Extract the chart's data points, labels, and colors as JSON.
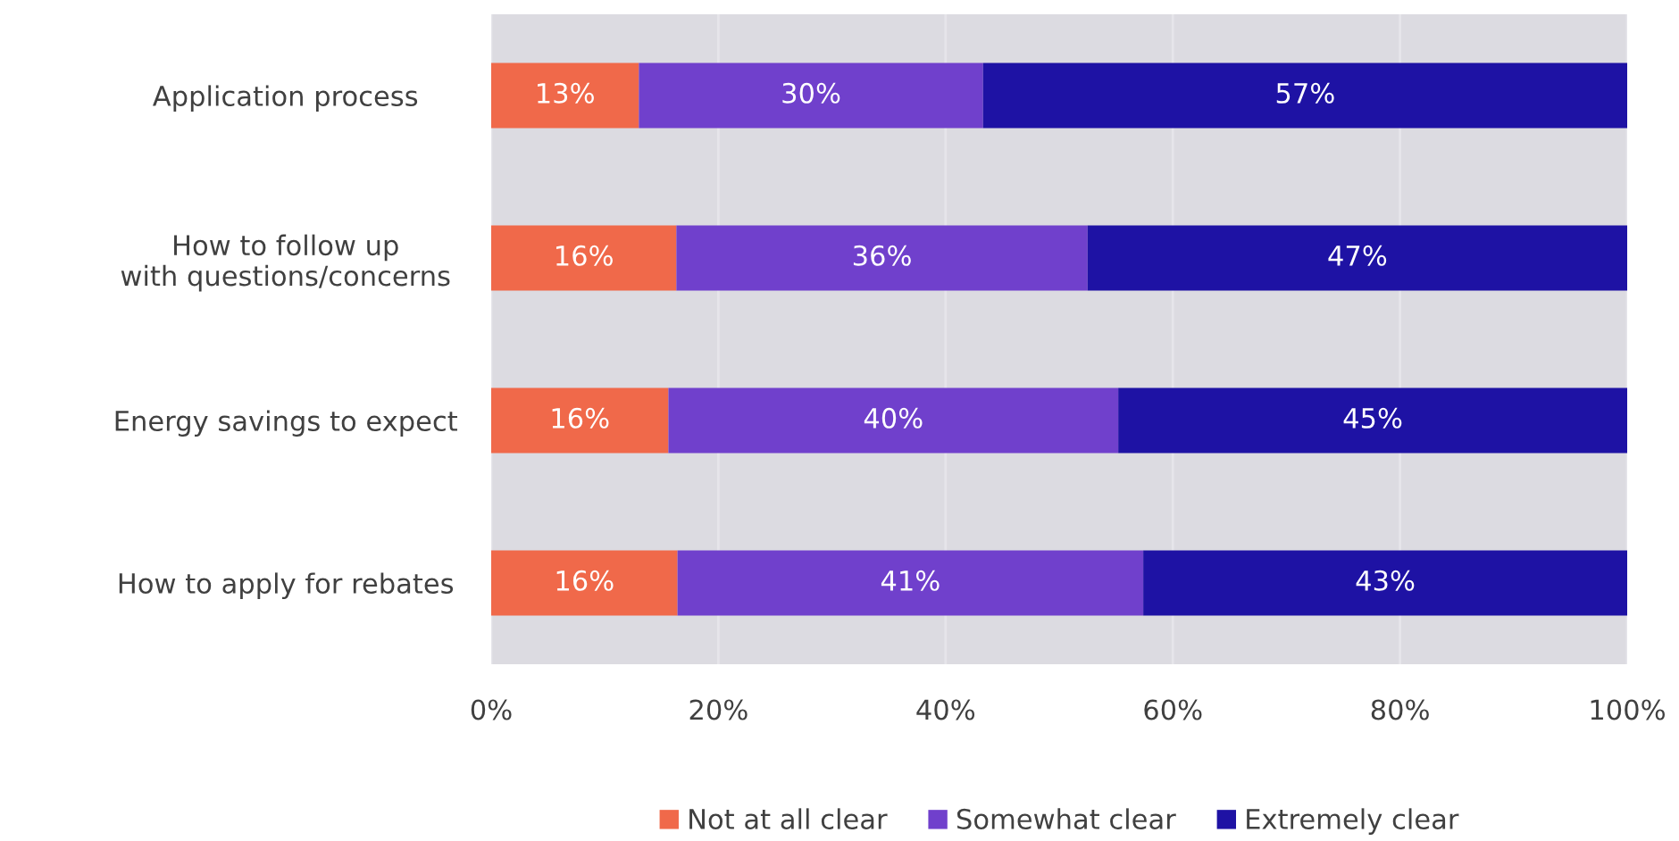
{
  "chart_data": {
    "type": "bar",
    "orientation": "horizontal",
    "stacked": true,
    "categories": [
      "Application process",
      "How to follow up\nwith questions/concerns",
      "Energy savings to expect",
      "How to apply for rebates"
    ],
    "series": [
      {
        "name": "Not at all clear",
        "color": "#f0694a",
        "values": [
          13.0,
          16.3,
          15.6,
          16.4
        ],
        "value_labels": [
          "13%",
          "16%",
          "16%",
          "16%"
        ]
      },
      {
        "name": "Somewhat clear",
        "color": "#7040cc",
        "values": [
          30.3,
          36.2,
          39.6,
          41.0
        ],
        "value_labels": [
          "30%",
          "36%",
          "40%",
          "41%"
        ]
      },
      {
        "name": "Extremely clear",
        "color": "#1e12a4",
        "values": [
          56.7,
          47.5,
          45.0,
          42.6
        ],
        "value_labels": [
          "57%",
          "47%",
          "45%",
          "43%"
        ]
      }
    ],
    "xlim": [
      0,
      100
    ],
    "xticks": [
      {
        "value": 0,
        "label": "0%"
      },
      {
        "value": 20,
        "label": "20%"
      },
      {
        "value": 40,
        "label": "40%"
      },
      {
        "value": 60,
        "label": "60%"
      },
      {
        "value": 80,
        "label": "80%"
      },
      {
        "value": 100,
        "label": "100%"
      }
    ],
    "grid": "x",
    "legend": "bottom"
  }
}
